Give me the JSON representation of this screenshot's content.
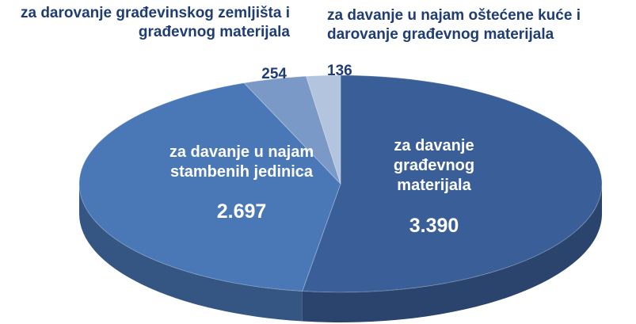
{
  "chart_data": {
    "type": "pie",
    "categories": [
      "za davanje građevnog materijala",
      "za davanje u najam stambenih jedinica",
      "za darovanje građevinskog zemljišta i građevnog materijala",
      "za davanje u najam oštećene kuće i darovanje građevnog materijala"
    ],
    "values": [
      3390,
      2697,
      254,
      136
    ],
    "value_labels": [
      "3.390",
      "2.697",
      "254",
      "136"
    ],
    "colors": [
      "#3a5f98",
      "#4a78b6",
      "#7b99c7",
      "#b3c4df"
    ]
  }
}
